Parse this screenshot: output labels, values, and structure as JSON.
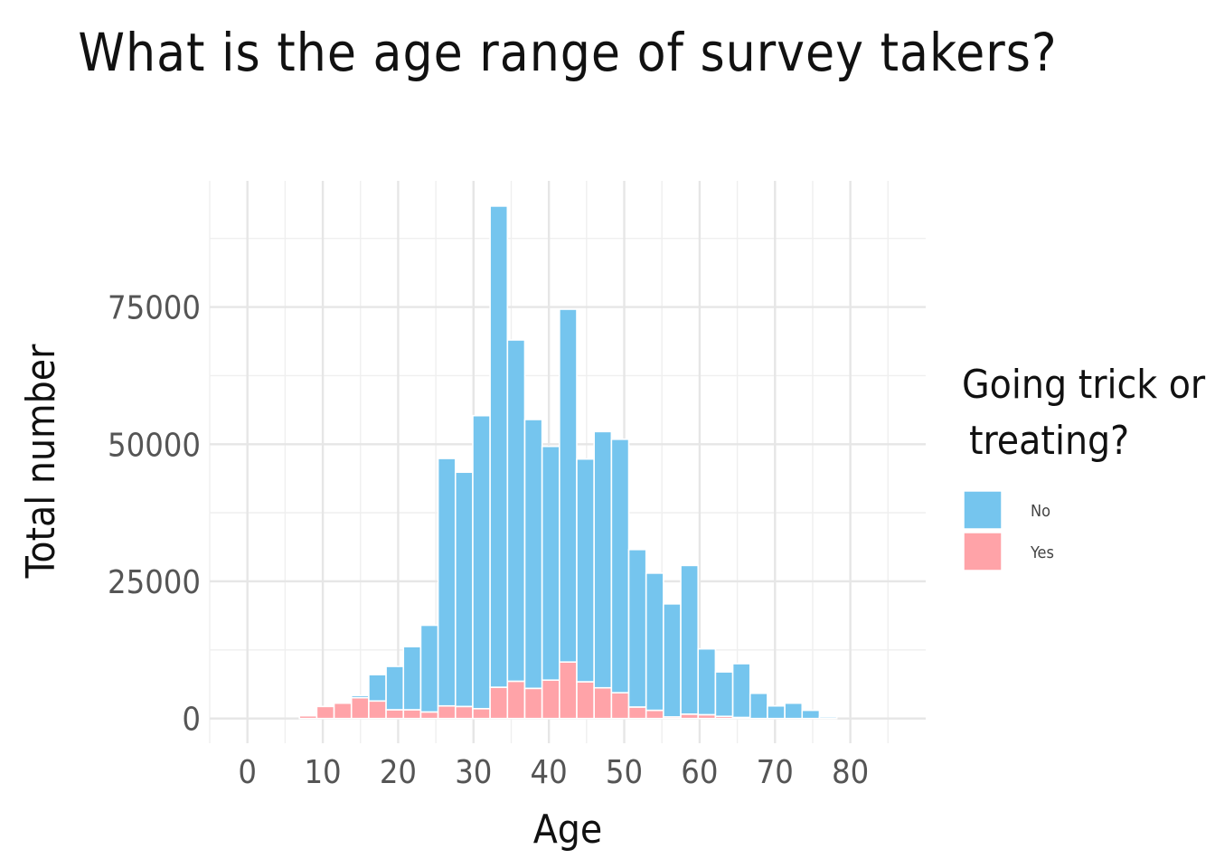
{
  "chart_data": {
    "type": "bar",
    "stacked": true,
    "title": "What is the age range of survey takers?",
    "xlabel": "Age",
    "ylabel": "Total number",
    "xlim": [
      -5,
      90
    ],
    "ylim": [
      -4500,
      98000
    ],
    "x_ticks": [
      0,
      10,
      20,
      30,
      40,
      50,
      60,
      70,
      80
    ],
    "y_ticks": [
      0,
      25000,
      50000,
      75000
    ],
    "y_tick_labels": [
      "0",
      "25000",
      "50000",
      "75000"
    ],
    "bin_width": 2.3,
    "x": [
      1.15,
      3.45,
      5.75,
      8.05,
      10.35,
      12.65,
      14.95,
      17.25,
      19.55,
      21.85,
      24.15,
      26.45,
      28.75,
      31.05,
      33.35,
      35.65,
      37.95,
      40.25,
      42.55,
      44.85,
      47.15,
      49.45,
      51.75,
      54.05,
      56.35,
      58.65,
      60.95,
      63.25,
      65.55,
      67.85,
      70.15,
      72.45,
      74.75,
      77.05,
      79.35,
      81.65,
      83.95,
      86.25
    ],
    "series": [
      {
        "name": "Yes",
        "color": "#FFA3A8",
        "values": [
          0,
          0,
          0,
          500,
          2200,
          2800,
          3800,
          3200,
          1600,
          1600,
          1200,
          2300,
          2200,
          1800,
          5700,
          6800,
          5500,
          7000,
          10300,
          6700,
          5600,
          4700,
          2100,
          1500,
          300,
          800,
          700,
          400,
          200,
          0,
          0,
          0,
          0,
          0,
          0,
          0,
          0,
          0
        ]
      },
      {
        "name": "No",
        "color": "#75C5EE",
        "values": [
          0,
          0,
          0,
          0,
          0,
          0,
          400,
          4800,
          7900,
          11500,
          15800,
          45100,
          42700,
          53400,
          87700,
          62200,
          49000,
          42600,
          64300,
          40600,
          46700,
          46200,
          28700,
          25000,
          20600,
          27100,
          12000,
          8100,
          9800,
          4600,
          2300,
          2800,
          1500,
          300,
          0,
          0,
          0,
          0
        ]
      }
    ],
    "legend": {
      "title": "Going trick or treating?",
      "position": "right",
      "order": [
        "No",
        "Yes"
      ]
    },
    "grid": true
  }
}
